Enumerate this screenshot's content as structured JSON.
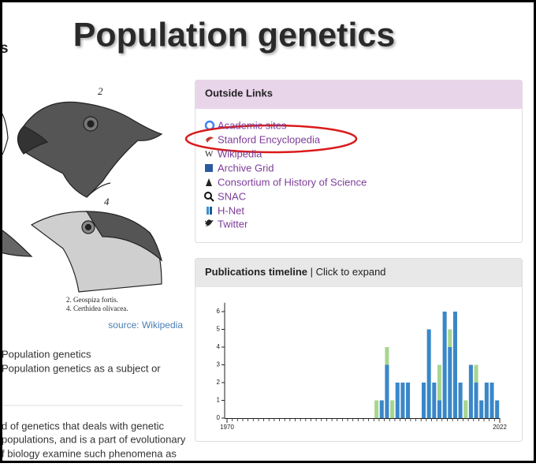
{
  "header": {
    "title": "Population genetics",
    "left_fragment": "s"
  },
  "image": {
    "figure_numbers": [
      "2",
      "4"
    ],
    "caption_lines": [
      "2. Geospiza fortis.",
      "4. Certhidea olivacea."
    ],
    "source": "source: Wikipedia"
  },
  "left_text": {
    "lines": [
      "Population genetics",
      "Population genetics as a subject or"
    ],
    "paragraph": [
      "d of genetics that deals with genetic",
      "populations, and is a part of evolutionary",
      "f biology examine such phenomena as"
    ]
  },
  "outside_links": {
    "title": "Outside Links",
    "links": [
      "Academic sites",
      "Stanford Encyclopedia",
      "Wikipedia",
      "Archive Grid",
      "Consortium of History of Science",
      "SNAC",
      "H-Net",
      "Twitter"
    ]
  },
  "timeline": {
    "title": "Publications timeline",
    "hint": "| Click to expand"
  },
  "chart_data": {
    "type": "bar",
    "stacked": true,
    "x": [
      1998,
      1999,
      2000,
      2001,
      2002,
      2003,
      2004,
      2005,
      2006,
      2007,
      2008,
      2009,
      2010,
      2011,
      2012,
      2013,
      2014,
      2015,
      2016,
      2017,
      2018,
      2019,
      2020,
      2021
    ],
    "series": [
      {
        "color": "#3a87c8",
        "values": [
          0,
          1,
          3,
          0,
          2,
          2,
          2,
          0,
          0,
          2,
          5,
          2,
          1,
          6,
          4,
          6,
          2,
          0,
          3,
          2,
          1,
          2,
          2,
          1
        ]
      },
      {
        "color": "#a8d590",
        "values": [
          1,
          0,
          1,
          1,
          0,
          0,
          0,
          0,
          0,
          0,
          0,
          0,
          2,
          0,
          1,
          0,
          0,
          1,
          0,
          1,
          0,
          0,
          0,
          0
        ]
      }
    ],
    "xlim": [
      1970,
      2022
    ],
    "xticks": [
      1970,
      2022
    ],
    "ylim": [
      0,
      6.5
    ],
    "yticks": [
      0,
      1,
      2,
      3,
      4,
      5,
      6
    ]
  }
}
